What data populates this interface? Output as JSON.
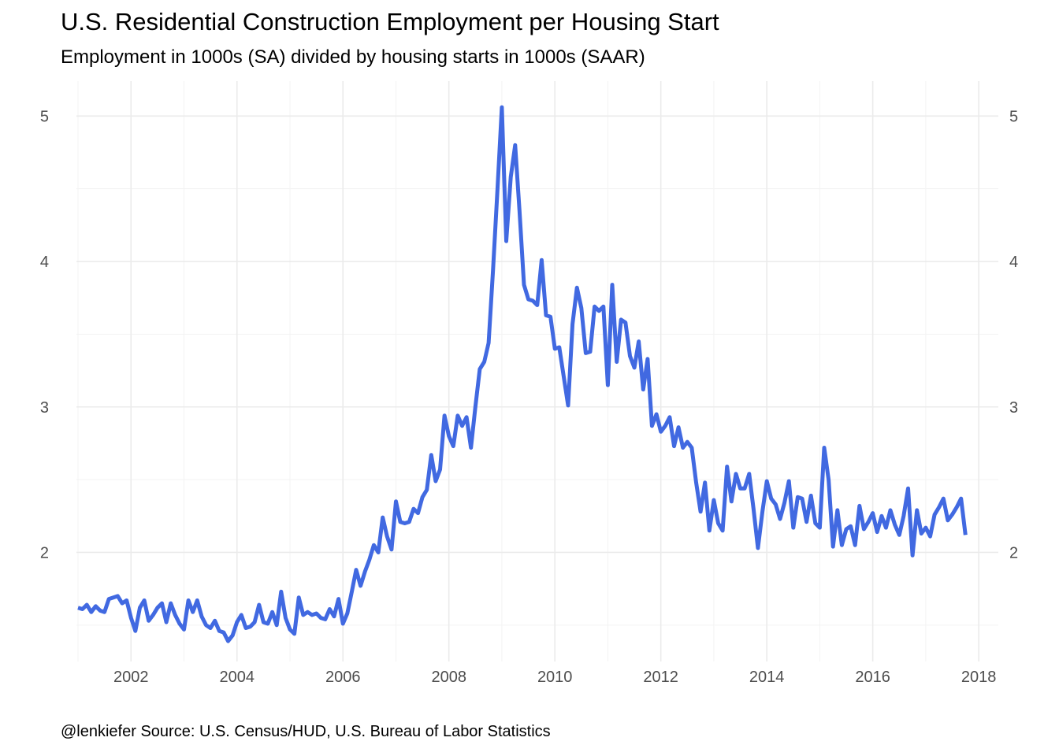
{
  "title": "U.S. Residential Construction Employment per Housing Start",
  "subtitle": "Employment in 1000s (SA) divided by housing starts in 1000s (SAAR)",
  "caption": "@lenkiefer Source: U.S. Census/HUD, U.S. Bureau of Labor Statistics",
  "colors": {
    "line": "#4169e1",
    "grid_major": "#ebebeb",
    "grid_minor": "#f3f3f3",
    "tick_text": "#4d4d4d"
  },
  "chart_data": {
    "type": "line",
    "title": "U.S. Residential Construction Employment per Housing Start",
    "subtitle": "Employment in 1000s (SA) divided by housing starts in 1000s (SAAR)",
    "xlabel": "",
    "ylabel": "",
    "x_ticks": [
      "2002",
      "2004",
      "2006",
      "2008",
      "2010",
      "2012",
      "2014",
      "2016",
      "2018"
    ],
    "y_ticks": [
      "2",
      "3",
      "4",
      "5"
    ],
    "y_ticks_right": true,
    "xlim": [
      2000.97,
      2018.37
    ],
    "ylim": [
      1.25,
      5.24
    ],
    "grid": true,
    "series": [
      {
        "x": [
          2001.0,
          2001.083,
          2001.167,
          2001.25,
          2001.333,
          2001.417,
          2001.5,
          2001.583,
          2001.667,
          2001.75,
          2001.833,
          2001.917,
          2002.0,
          2002.083,
          2002.167,
          2002.25,
          2002.333,
          2002.417,
          2002.5,
          2002.583,
          2002.667,
          2002.75,
          2002.833,
          2002.917,
          2003.0,
          2003.083,
          2003.167,
          2003.25,
          2003.333,
          2003.417,
          2003.5,
          2003.583,
          2003.667,
          2003.75,
          2003.833,
          2003.917,
          2004.0,
          2004.083,
          2004.167,
          2004.25,
          2004.333,
          2004.417,
          2004.5,
          2004.583,
          2004.667,
          2004.75,
          2004.833,
          2004.917,
          2005.0,
          2005.083,
          2005.167,
          2005.25,
          2005.333,
          2005.417,
          2005.5,
          2005.583,
          2005.667,
          2005.75,
          2005.833,
          2005.917,
          2006.0,
          2006.083,
          2006.167,
          2006.25,
          2006.333,
          2006.417,
          2006.5,
          2006.583,
          2006.667,
          2006.75,
          2006.833,
          2006.917,
          2007.0,
          2007.083,
          2007.167,
          2007.25,
          2007.333,
          2007.417,
          2007.5,
          2007.583,
          2007.667,
          2007.75,
          2007.833,
          2007.917,
          2008.0,
          2008.083,
          2008.167,
          2008.25,
          2008.333,
          2008.417,
          2008.5,
          2008.583,
          2008.667,
          2008.75,
          2008.833,
          2008.917,
          2009.0,
          2009.083,
          2009.167,
          2009.25,
          2009.333,
          2009.417,
          2009.5,
          2009.583,
          2009.667,
          2009.75,
          2009.833,
          2009.917,
          2010.0,
          2010.083,
          2010.167,
          2010.25,
          2010.333,
          2010.417,
          2010.5,
          2010.583,
          2010.667,
          2010.75,
          2010.833,
          2010.917,
          2011.0,
          2011.083,
          2011.167,
          2011.25,
          2011.333,
          2011.417,
          2011.5,
          2011.583,
          2011.667,
          2011.75,
          2011.833,
          2011.917,
          2012.0,
          2012.083,
          2012.167,
          2012.25,
          2012.333,
          2012.417,
          2012.5,
          2012.583,
          2012.667,
          2012.75,
          2012.833,
          2012.917,
          2013.0,
          2013.083,
          2013.167,
          2013.25,
          2013.333,
          2013.417,
          2013.5,
          2013.583,
          2013.667,
          2013.75,
          2013.833,
          2013.917,
          2014.0,
          2014.083,
          2014.167,
          2014.25,
          2014.333,
          2014.417,
          2014.5,
          2014.583,
          2014.667,
          2014.75,
          2014.833,
          2014.917,
          2015.0,
          2015.083,
          2015.167,
          2015.25,
          2015.333,
          2015.417,
          2015.5,
          2015.583,
          2015.667,
          2015.75,
          2015.833,
          2015.917,
          2016.0,
          2016.083,
          2016.167,
          2016.25,
          2016.333,
          2016.417,
          2016.5,
          2016.583,
          2016.667,
          2016.75,
          2016.833,
          2016.917,
          2017.0,
          2017.083,
          2017.167,
          2017.25,
          2017.333,
          2017.417,
          2017.5,
          2017.583,
          2017.667,
          2017.75
        ],
        "values": [
          1.62,
          1.61,
          1.64,
          1.59,
          1.63,
          1.6,
          1.59,
          1.68,
          1.69,
          1.7,
          1.65,
          1.67,
          1.55,
          1.46,
          1.62,
          1.67,
          1.53,
          1.57,
          1.62,
          1.65,
          1.52,
          1.65,
          1.57,
          1.51,
          1.47,
          1.67,
          1.59,
          1.67,
          1.56,
          1.5,
          1.48,
          1.53,
          1.46,
          1.45,
          1.39,
          1.43,
          1.52,
          1.57,
          1.48,
          1.49,
          1.52,
          1.64,
          1.52,
          1.51,
          1.59,
          1.5,
          1.73,
          1.55,
          1.47,
          1.44,
          1.69,
          1.57,
          1.59,
          1.57,
          1.58,
          1.55,
          1.54,
          1.61,
          1.56,
          1.68,
          1.51,
          1.58,
          1.73,
          1.88,
          1.77,
          1.87,
          1.95,
          2.05,
          2.0,
          2.24,
          2.11,
          2.02,
          2.35,
          2.21,
          2.2,
          2.21,
          2.3,
          2.27,
          2.38,
          2.43,
          2.67,
          2.49,
          2.57,
          2.94,
          2.8,
          2.73,
          2.94,
          2.87,
          2.93,
          2.72,
          3.0,
          3.26,
          3.31,
          3.44,
          3.94,
          4.5,
          5.06,
          4.14,
          4.58,
          4.8,
          4.35,
          3.84,
          3.74,
          3.73,
          3.7,
          4.01,
          3.63,
          3.62,
          3.4,
          3.41,
          3.21,
          3.01,
          3.57,
          3.82,
          3.68,
          3.37,
          3.38,
          3.69,
          3.66,
          3.69,
          3.15,
          3.84,
          3.31,
          3.6,
          3.58,
          3.35,
          3.27,
          3.45,
          3.12,
          3.33,
          2.87,
          2.95,
          2.83,
          2.87,
          2.93,
          2.73,
          2.86,
          2.72,
          2.76,
          2.72,
          2.48,
          2.28,
          2.48,
          2.15,
          2.36,
          2.2,
          2.15,
          2.59,
          2.35,
          2.54,
          2.44,
          2.44,
          2.54,
          2.3,
          2.03,
          2.28,
          2.49,
          2.37,
          2.33,
          2.23,
          2.34,
          2.49,
          2.17,
          2.38,
          2.37,
          2.21,
          2.39,
          2.2,
          2.17,
          2.72,
          2.5,
          2.04,
          2.29,
          2.05,
          2.16,
          2.18,
          2.05,
          2.32,
          2.16,
          2.21,
          2.27,
          2.14,
          2.25,
          2.17,
          2.29,
          2.19,
          2.12,
          2.25,
          2.44,
          1.98,
          2.29,
          2.13,
          2.17,
          2.11,
          2.26,
          2.31,
          2.37,
          2.22,
          2.26,
          2.31,
          2.37,
          2.12
        ]
      }
    ]
  }
}
